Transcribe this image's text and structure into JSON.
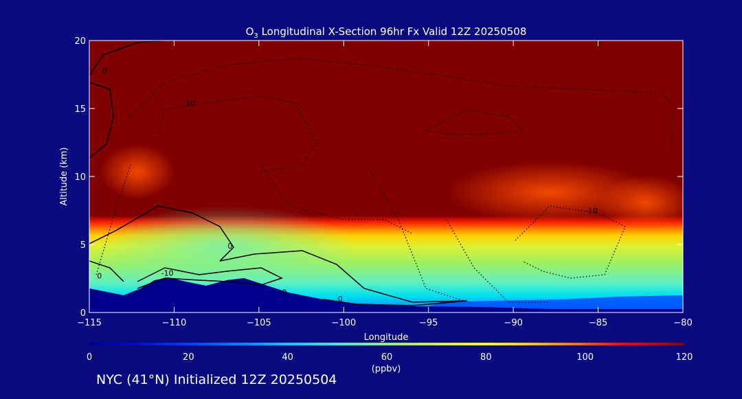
{
  "chart_data": {
    "type": "heatmap",
    "title_main": "O",
    "title_sub": "3",
    "title_rest": " Longitudinal X-Section 96hr  Fx Valid 12Z 20250508",
    "xlabel": "Longitude",
    "ylabel": "Altitude (km)",
    "xlim": [
      -115,
      -80
    ],
    "ylim": [
      0,
      20
    ],
    "xticks": [
      -115,
      -110,
      -105,
      -100,
      -95,
      -90,
      -85,
      -80
    ],
    "xtick_labels": [
      "−115",
      "−110",
      "−105",
      "−100",
      "−95",
      "−90",
      "−85",
      "−80"
    ],
    "yticks": [
      0,
      5,
      10,
      15,
      20
    ],
    "ytick_labels": [
      "0",
      "5",
      "10",
      "15",
      "20"
    ],
    "colorbar": {
      "ticks": [
        0,
        20,
        40,
        60,
        80,
        100,
        120
      ],
      "tick_labels": [
        "0",
        "20",
        "40",
        "60",
        "80",
        "100",
        "120"
      ],
      "unit": "(ppbv)",
      "range": [
        0,
        120
      ]
    },
    "contour_labels": [
      {
        "text": "0",
        "lon": -114.1,
        "alt": 17.6
      },
      {
        "text": "-10",
        "lon": -109.1,
        "alt": 15.2
      },
      {
        "text": "0",
        "lon": -114.4,
        "alt": 2.5
      },
      {
        "text": "-10",
        "lon": -110.4,
        "alt": 2.7
      },
      {
        "text": "0",
        "lon": -106.7,
        "alt": 4.7
      },
      {
        "text": "0",
        "lon": -103.5,
        "alt": 1.3
      },
      {
        "text": "0",
        "lon": -100.2,
        "alt": 0.8
      },
      {
        "text": "-10",
        "lon": -85.4,
        "alt": 7.3
      }
    ],
    "ozone_field_note": ""
  },
  "footer": {
    "text": "NYC (41°N) Initialized 12Z 20250504"
  },
  "colors": {
    "background": "#0a0a80",
    "terrain": "#00008c",
    "high_ozone": "#800000"
  }
}
